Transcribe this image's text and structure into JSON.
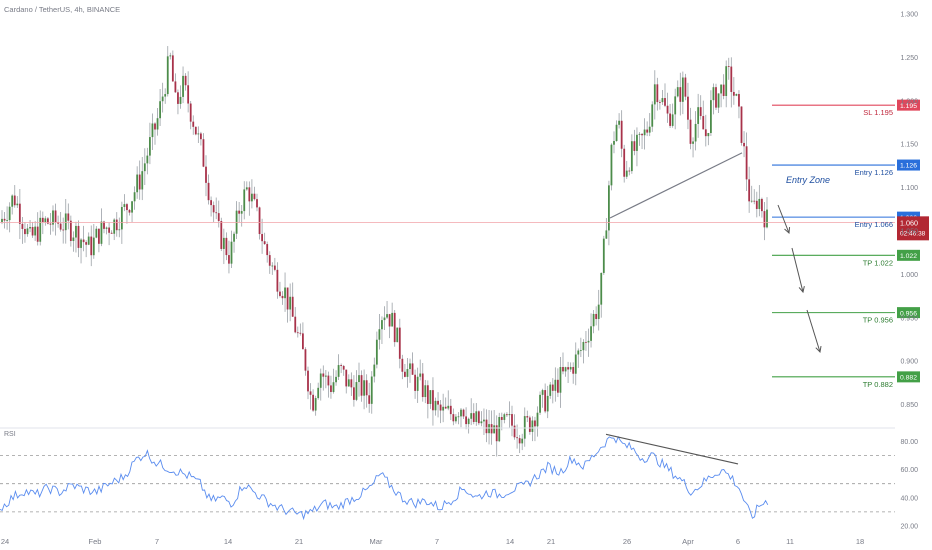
{
  "header": {
    "symbol_title": "Cardano / TetherUS, 4h, BINANCE"
  },
  "rsi_panel": {
    "label": "RSI",
    "levels": [
      80,
      60,
      40,
      20
    ],
    "tick_labels": [
      "80.00",
      "60.00",
      "40.00",
      "20.00"
    ],
    "bands": [
      70,
      50,
      30
    ]
  },
  "price_axis": {
    "ticks": [
      1.3,
      1.25,
      1.2,
      1.15,
      1.1,
      1.05,
      1.0,
      0.95,
      0.9,
      0.85
    ],
    "tick_labels": [
      "1.300",
      "1.250",
      "1.200",
      "1.150",
      "1.100",
      "1.050",
      "1.000",
      "0.950",
      "0.900",
      "0.850"
    ]
  },
  "time_axis": {
    "labels": [
      "24",
      "Feb",
      "7",
      "14",
      "21",
      "Mar",
      "7",
      "14",
      "21",
      "26",
      "Apr",
      "6",
      "11",
      "18"
    ]
  },
  "current_price": {
    "value": "1.060",
    "countdown": "02:46:38",
    "color": "#b22833"
  },
  "levels": [
    {
      "label": "SL 1.195",
      "tag": "1.195",
      "price": 1.195,
      "color": "#e0475c",
      "text_color": "#c0283c"
    },
    {
      "label": "Entry 1.126",
      "tag": "1.126",
      "price": 1.126,
      "color": "#2a6fdb",
      "text_color": "#1f4fa0"
    },
    {
      "label": "Entry 1.066",
      "tag": "1.066",
      "price": 1.066,
      "color": "#2a6fdb",
      "text_color": "#1f4fa0"
    },
    {
      "label": "TP 1.022",
      "tag": "1.022",
      "price": 1.022,
      "color": "#43a047",
      "text_color": "#2e7d32"
    },
    {
      "label": "TP 0.956",
      "tag": "0.956",
      "price": 0.956,
      "color": "#43a047",
      "text_color": "#2e7d32"
    },
    {
      "label": "TP 0.882",
      "tag": "0.882",
      "price": 0.882,
      "color": "#43a047",
      "text_color": "#2e7d32"
    }
  ],
  "annotations": {
    "entry_zone": "Entry Zone"
  },
  "colors": {
    "up": "#4c8c4a",
    "down": "#a8324a",
    "wick": "#9aa0a6",
    "rsi": "#5b8def",
    "trendline": "#787b86"
  },
  "chart_data": {
    "type": "candlestick",
    "title": "Cardano / TetherUS, 4h, BINANCE",
    "ylim": [
      0.83,
      1.3
    ],
    "x": [
      "24",
      "Feb",
      "7",
      "14",
      "21",
      "Mar",
      "7",
      "14",
      "21",
      "26",
      "Apr",
      "6"
    ],
    "close_path": [
      [
        0,
        1.06
      ],
      [
        14,
        1.09
      ],
      [
        30,
        1.04
      ],
      [
        45,
        1.06
      ],
      [
        60,
        1.06
      ],
      [
        75,
        1.05
      ],
      [
        90,
        1.03
      ],
      [
        100,
        1.05
      ],
      [
        115,
        1.06
      ],
      [
        128,
        1.08
      ],
      [
        140,
        1.11
      ],
      [
        150,
        1.15
      ],
      [
        158,
        1.18
      ],
      [
        165,
        1.22
      ],
      [
        170,
        1.25
      ],
      [
        176,
        1.19
      ],
      [
        182,
        1.22
      ],
      [
        188,
        1.2
      ],
      [
        195,
        1.17
      ],
      [
        204,
        1.13
      ],
      [
        210,
        1.09
      ],
      [
        218,
        1.05
      ],
      [
        230,
        1.02
      ],
      [
        240,
        1.08
      ],
      [
        248,
        1.1
      ],
      [
        256,
        1.07
      ],
      [
        265,
        1.03
      ],
      [
        275,
        1.0
      ],
      [
        285,
        0.98
      ],
      [
        295,
        0.94
      ],
      [
        305,
        0.9
      ],
      [
        312,
        0.85
      ],
      [
        320,
        0.89
      ],
      [
        330,
        0.87
      ],
      [
        340,
        0.89
      ],
      [
        350,
        0.87
      ],
      [
        360,
        0.87
      ],
      [
        370,
        0.86
      ],
      [
        378,
        0.95
      ],
      [
        386,
        0.96
      ],
      [
        394,
        0.94
      ],
      [
        402,
        0.9
      ],
      [
        412,
        0.88
      ],
      [
        422,
        0.87
      ],
      [
        432,
        0.85
      ],
      [
        442,
        0.84
      ],
      [
        452,
        0.84
      ],
      [
        462,
        0.85
      ],
      [
        470,
        0.83
      ],
      [
        478,
        0.83
      ],
      [
        488,
        0.82
      ],
      [
        498,
        0.82
      ],
      [
        508,
        0.83
      ],
      [
        520,
        0.82
      ],
      [
        530,
        0.83
      ],
      [
        540,
        0.85
      ],
      [
        550,
        0.86
      ],
      [
        560,
        0.88
      ],
      [
        570,
        0.89
      ],
      [
        580,
        0.91
      ],
      [
        590,
        0.94
      ],
      [
        600,
        0.97
      ],
      [
        606,
        1.06
      ],
      [
        612,
        1.15
      ],
      [
        618,
        1.18
      ],
      [
        624,
        1.12
      ],
      [
        632,
        1.14
      ],
      [
        640,
        1.15
      ],
      [
        648,
        1.17
      ],
      [
        655,
        1.22
      ],
      [
        662,
        1.2
      ],
      [
        668,
        1.18
      ],
      [
        676,
        1.2
      ],
      [
        684,
        1.22
      ],
      [
        690,
        1.16
      ],
      [
        698,
        1.18
      ],
      [
        706,
        1.16
      ],
      [
        712,
        1.2
      ],
      [
        720,
        1.21
      ],
      [
        728,
        1.23
      ],
      [
        736,
        1.2
      ],
      [
        742,
        1.16
      ],
      [
        748,
        1.1
      ],
      [
        752,
        1.07
      ],
      [
        758,
        1.09
      ],
      [
        764,
        1.07
      ],
      [
        768,
        1.06
      ]
    ],
    "rsi": [
      [
        0,
        32
      ],
      [
        12,
        40
      ],
      [
        24,
        45
      ],
      [
        36,
        42
      ],
      [
        48,
        47
      ],
      [
        60,
        44
      ],
      [
        72,
        49
      ],
      [
        84,
        46
      ],
      [
        96,
        44
      ],
      [
        110,
        50
      ],
      [
        124,
        55
      ],
      [
        136,
        67
      ],
      [
        146,
        72
      ],
      [
        156,
        65
      ],
      [
        168,
        61
      ],
      [
        180,
        58
      ],
      [
        190,
        55
      ],
      [
        200,
        50
      ],
      [
        210,
        38
      ],
      [
        222,
        40
      ],
      [
        232,
        36
      ],
      [
        244,
        50
      ],
      [
        254,
        44
      ],
      [
        266,
        38
      ],
      [
        278,
        33
      ],
      [
        290,
        30
      ],
      [
        300,
        28
      ],
      [
        312,
        30
      ],
      [
        324,
        36
      ],
      [
        336,
        33
      ],
      [
        348,
        38
      ],
      [
        360,
        42
      ],
      [
        372,
        48
      ],
      [
        380,
        57
      ],
      [
        390,
        49
      ],
      [
        402,
        40
      ],
      [
        414,
        36
      ],
      [
        426,
        38
      ],
      [
        440,
        33
      ],
      [
        452,
        39
      ],
      [
        464,
        47
      ],
      [
        476,
        40
      ],
      [
        488,
        44
      ],
      [
        500,
        42
      ],
      [
        512,
        46
      ],
      [
        524,
        48
      ],
      [
        536,
        55
      ],
      [
        548,
        62
      ],
      [
        560,
        58
      ],
      [
        572,
        68
      ],
      [
        584,
        62
      ],
      [
        596,
        72
      ],
      [
        606,
        80
      ],
      [
        614,
        84
      ],
      [
        622,
        78
      ],
      [
        632,
        75
      ],
      [
        642,
        68
      ],
      [
        652,
        70
      ],
      [
        662,
        64
      ],
      [
        672,
        58
      ],
      [
        682,
        52
      ],
      [
        692,
        44
      ],
      [
        702,
        50
      ],
      [
        712,
        56
      ],
      [
        722,
        60
      ],
      [
        732,
        54
      ],
      [
        740,
        46
      ],
      [
        746,
        34
      ],
      [
        752,
        26
      ],
      [
        760,
        35
      ],
      [
        768,
        38
      ]
    ],
    "trendlines": [
      {
        "panel": "price",
        "from": [
          610,
          1.065
        ],
        "to": [
          742,
          1.14
        ]
      },
      {
        "panel": "rsi",
        "from": [
          606,
          85
        ],
        "to": [
          738,
          64
        ]
      }
    ],
    "current": 1.06
  }
}
